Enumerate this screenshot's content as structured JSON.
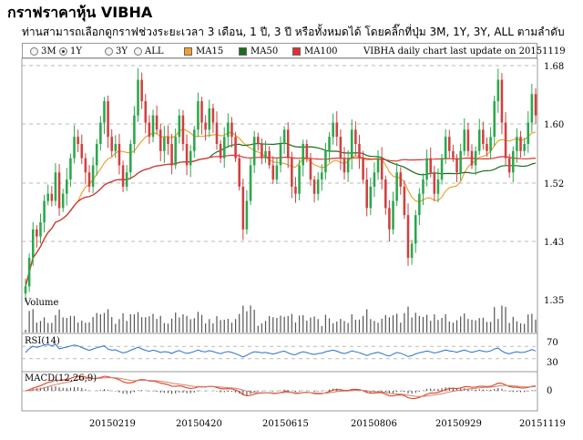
{
  "page": {
    "title": "กราฟราคาหุ้น VIBHA",
    "subtitle": "ท่านสามารถเลือกดูกราฟช่วงระยะเวลา 3 เดือน, 1 ปี, 3 ปี หรือทั้งหมดได้ โดยคลิ๊กที่ปุ่ม 3M, 1Y, 3Y, ALL ตามลำดับ"
  },
  "toolbar": {
    "ranges": [
      {
        "label": "3M",
        "selected": false
      },
      {
        "label": "1Y",
        "selected": true
      },
      {
        "label": "3Y",
        "selected": false
      },
      {
        "label": "ALL",
        "selected": false
      }
    ],
    "legend": [
      {
        "label": "MA15",
        "color": "#f0a030"
      },
      {
        "label": "MA50",
        "color": "#1a6e1a"
      },
      {
        "label": "MA100",
        "color": "#e03030"
      }
    ],
    "update_note": "VIBHA daily chart last update on 20151119"
  },
  "chart_data": {
    "type": "candlestick",
    "ticker": "VIBHA",
    "colors": {
      "up": "#2aa84a",
      "down": "#d04040",
      "ma15": "#f0a030",
      "ma50": "#1a6e1a",
      "ma100": "#e03030",
      "rsi": "#2a6fd0",
      "macd": "#e04020",
      "signal": "#d08070"
    },
    "x_tick_labels": [
      "20150219",
      "20150420",
      "20150615",
      "20150806",
      "20150929",
      "20151119"
    ],
    "y_tick_labels": [
      "1.68",
      "1.60",
      "1.52",
      "1.43",
      "1.35"
    ],
    "ylim": [
      1.35,
      1.68
    ],
    "volume_label": "Volume",
    "rsi": {
      "label": "RSI(14)",
      "levels": [
        "70",
        "30"
      ],
      "ylim": [
        0,
        100
      ]
    },
    "macd": {
      "label": "MACD(12,26,9)",
      "level": "0"
    },
    "close": [
      1.37,
      1.41,
      1.45,
      1.44,
      1.46,
      1.49,
      1.5,
      1.49,
      1.53,
      1.48,
      1.5,
      1.52,
      1.55,
      1.58,
      1.57,
      1.55,
      1.53,
      1.51,
      1.54,
      1.57,
      1.6,
      1.63,
      1.58,
      1.56,
      1.57,
      1.54,
      1.51,
      1.53,
      1.57,
      1.61,
      1.66,
      1.63,
      1.6,
      1.58,
      1.61,
      1.59,
      1.56,
      1.58,
      1.57,
      1.54,
      1.58,
      1.61,
      1.57,
      1.54,
      1.56,
      1.59,
      1.63,
      1.6,
      1.59,
      1.62,
      1.6,
      1.57,
      1.55,
      1.58,
      1.6,
      1.58,
      1.55,
      1.51,
      1.45,
      1.49,
      1.54,
      1.58,
      1.57,
      1.55,
      1.56,
      1.54,
      1.52,
      1.54,
      1.57,
      1.59,
      1.55,
      1.51,
      1.5,
      1.54,
      1.57,
      1.55,
      1.52,
      1.5,
      1.52,
      1.53,
      1.56,
      1.58,
      1.6,
      1.58,
      1.55,
      1.53,
      1.55,
      1.59,
      1.57,
      1.55,
      1.52,
      1.48,
      1.51,
      1.53,
      1.55,
      1.52,
      1.48,
      1.45,
      1.49,
      1.53,
      1.51,
      1.47,
      1.41,
      1.43,
      1.47,
      1.5,
      1.52,
      1.55,
      1.53,
      1.5,
      1.52,
      1.55,
      1.58,
      1.56,
      1.55,
      1.53,
      1.56,
      1.59,
      1.56,
      1.54,
      1.56,
      1.59,
      1.57,
      1.56,
      1.58,
      1.63,
      1.66,
      1.6,
      1.55,
      1.53,
      1.56,
      1.58,
      1.56,
      1.57,
      1.6,
      1.64,
      1.61
    ]
  }
}
